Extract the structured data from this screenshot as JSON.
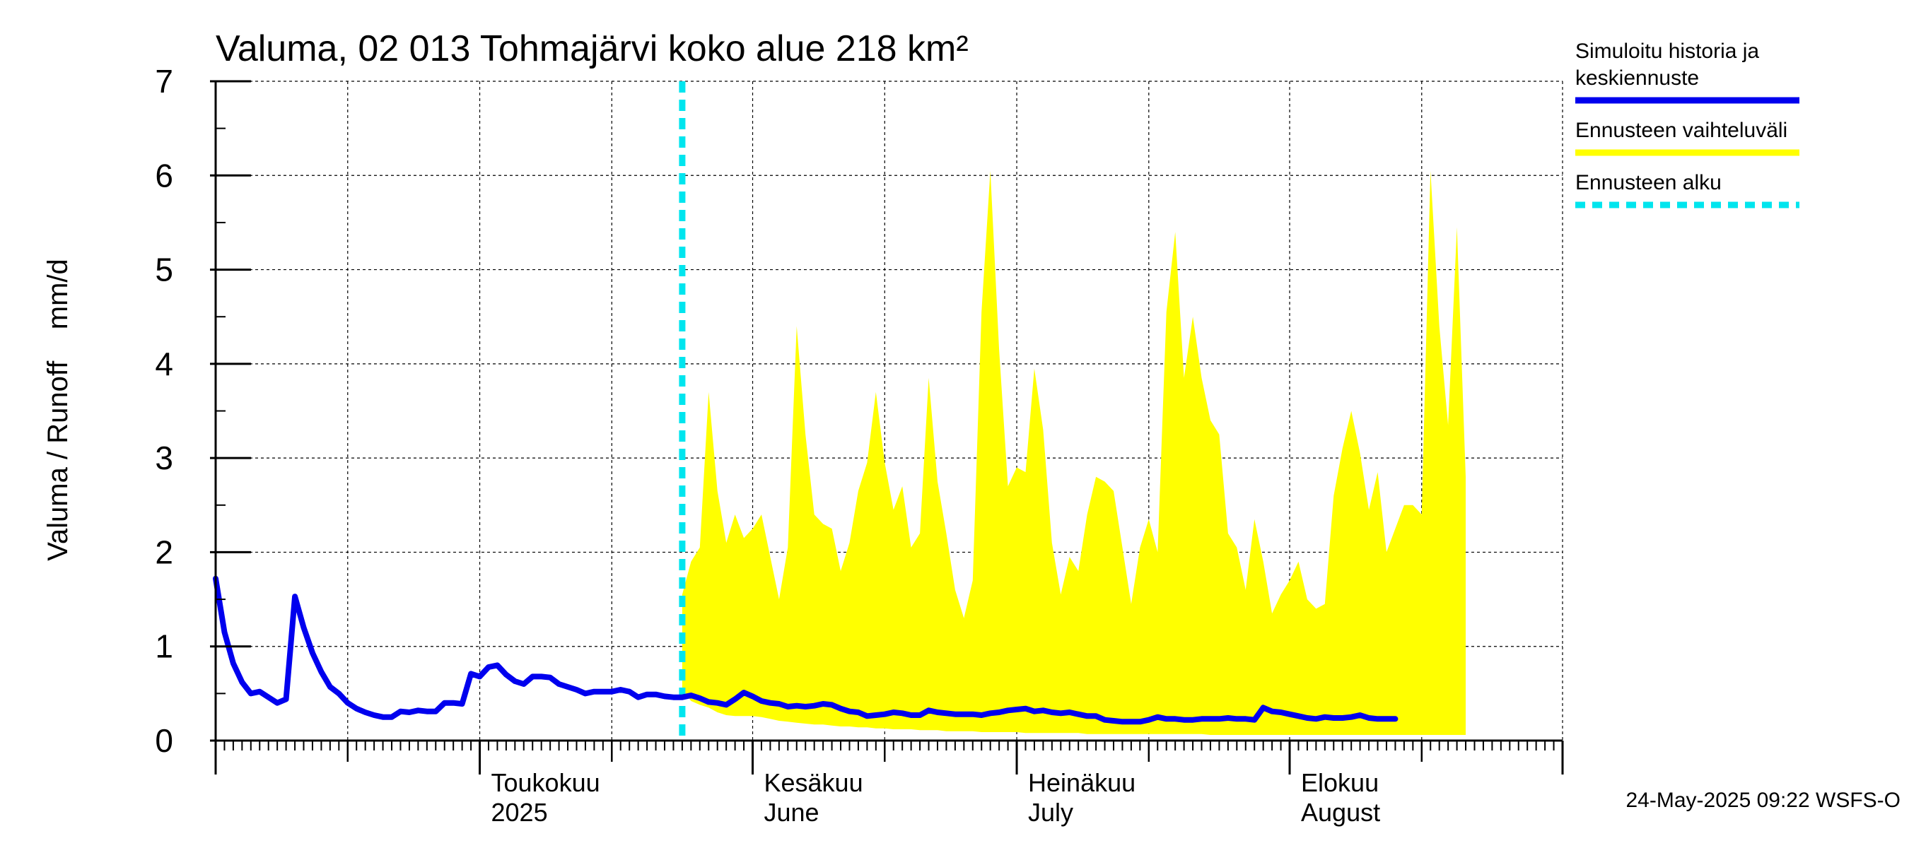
{
  "chart_data": {
    "type": "area",
    "title": "Valuma, 02 013 Tohmajärvi koko alue 218 km²",
    "ylabel": "Valuma / Runoff    mm/d",
    "ylim": [
      0,
      7
    ],
    "yticks": [
      "0",
      "1",
      "2",
      "3",
      "4",
      "5",
      "6",
      "7"
    ],
    "grid": true,
    "legend_position": "right",
    "start_date": "2025-04-01",
    "end_date": "2025-08-31",
    "forecast_start": "2025-05-24",
    "month_labels": [
      {
        "date": "2025-05-01",
        "line1": "Toukokuu",
        "line2": "2025"
      },
      {
        "date": "2025-06-01",
        "line1": "Kesäkuu",
        "line2": "June"
      },
      {
        "date": "2025-07-01",
        "line1": "Heinäkuu",
        "line2": "July"
      },
      {
        "date": "2025-08-01",
        "line1": "Elokuu",
        "line2": "August"
      }
    ],
    "series": [
      {
        "name": "Simuloitu historia ja keskiennuste",
        "color": "#0000ee",
        "points": [
          [
            "2025-04-01",
            1.72
          ],
          [
            "2025-04-02",
            1.15
          ],
          [
            "2025-04-03",
            0.82
          ],
          [
            "2025-04-04",
            0.62
          ],
          [
            "2025-04-05",
            0.5
          ],
          [
            "2025-04-06",
            0.52
          ],
          [
            "2025-04-07",
            0.46
          ],
          [
            "2025-04-08",
            0.4
          ],
          [
            "2025-04-09",
            0.44
          ],
          [
            "2025-04-10",
            1.53
          ],
          [
            "2025-04-11",
            1.2
          ],
          [
            "2025-04-12",
            0.93
          ],
          [
            "2025-04-13",
            0.73
          ],
          [
            "2025-04-14",
            0.57
          ],
          [
            "2025-04-15",
            0.5
          ],
          [
            "2025-04-16",
            0.4
          ],
          [
            "2025-04-17",
            0.34
          ],
          [
            "2025-04-18",
            0.3
          ],
          [
            "2025-04-19",
            0.27
          ],
          [
            "2025-04-20",
            0.25
          ],
          [
            "2025-04-21",
            0.25
          ],
          [
            "2025-04-22",
            0.31
          ],
          [
            "2025-04-23",
            0.3
          ],
          [
            "2025-04-24",
            0.32
          ],
          [
            "2025-04-25",
            0.31
          ],
          [
            "2025-04-26",
            0.31
          ],
          [
            "2025-04-27",
            0.4
          ],
          [
            "2025-04-28",
            0.4
          ],
          [
            "2025-04-29",
            0.39
          ],
          [
            "2025-04-30",
            0.71
          ],
          [
            "2025-05-01",
            0.68
          ],
          [
            "2025-05-02",
            0.78
          ],
          [
            "2025-05-03",
            0.8
          ],
          [
            "2025-05-04",
            0.7
          ],
          [
            "2025-05-05",
            0.63
          ],
          [
            "2025-05-06",
            0.6
          ],
          [
            "2025-05-07",
            0.68
          ],
          [
            "2025-05-08",
            0.68
          ],
          [
            "2025-05-09",
            0.67
          ],
          [
            "2025-05-10",
            0.6
          ],
          [
            "2025-05-11",
            0.57
          ],
          [
            "2025-05-12",
            0.54
          ],
          [
            "2025-05-13",
            0.5
          ],
          [
            "2025-05-14",
            0.52
          ],
          [
            "2025-05-15",
            0.52
          ],
          [
            "2025-05-16",
            0.52
          ],
          [
            "2025-05-17",
            0.54
          ],
          [
            "2025-05-18",
            0.52
          ],
          [
            "2025-05-19",
            0.46
          ],
          [
            "2025-05-20",
            0.49
          ],
          [
            "2025-05-21",
            0.49
          ],
          [
            "2025-05-22",
            0.47
          ],
          [
            "2025-05-23",
            0.46
          ],
          [
            "2025-05-24",
            0.46
          ],
          [
            "2025-05-25",
            0.48
          ],
          [
            "2025-05-26",
            0.45
          ],
          [
            "2025-05-27",
            0.41
          ],
          [
            "2025-05-28",
            0.4
          ],
          [
            "2025-05-29",
            0.38
          ],
          [
            "2025-05-30",
            0.44
          ],
          [
            "2025-05-31",
            0.51
          ],
          [
            "2025-06-01",
            0.47
          ],
          [
            "2025-06-02",
            0.42
          ],
          [
            "2025-06-03",
            0.4
          ],
          [
            "2025-06-04",
            0.39
          ],
          [
            "2025-06-05",
            0.36
          ],
          [
            "2025-06-06",
            0.37
          ],
          [
            "2025-06-07",
            0.36
          ],
          [
            "2025-06-08",
            0.37
          ],
          [
            "2025-06-09",
            0.39
          ],
          [
            "2025-06-10",
            0.38
          ],
          [
            "2025-06-11",
            0.34
          ],
          [
            "2025-06-12",
            0.31
          ],
          [
            "2025-06-13",
            0.3
          ],
          [
            "2025-06-14",
            0.26
          ],
          [
            "2025-06-15",
            0.27
          ],
          [
            "2025-06-16",
            0.28
          ],
          [
            "2025-06-17",
            0.3
          ],
          [
            "2025-06-18",
            0.29
          ],
          [
            "2025-06-19",
            0.27
          ],
          [
            "2025-06-20",
            0.27
          ],
          [
            "2025-06-21",
            0.32
          ],
          [
            "2025-06-22",
            0.3
          ],
          [
            "2025-06-23",
            0.29
          ],
          [
            "2025-06-24",
            0.28
          ],
          [
            "2025-06-25",
            0.28
          ],
          [
            "2025-06-26",
            0.28
          ],
          [
            "2025-06-27",
            0.27
          ],
          [
            "2025-06-28",
            0.29
          ],
          [
            "2025-06-29",
            0.3
          ],
          [
            "2025-06-30",
            0.32
          ],
          [
            "2025-07-01",
            0.33
          ],
          [
            "2025-07-02",
            0.34
          ],
          [
            "2025-07-03",
            0.31
          ],
          [
            "2025-07-04",
            0.32
          ],
          [
            "2025-07-05",
            0.3
          ],
          [
            "2025-07-06",
            0.29
          ],
          [
            "2025-07-07",
            0.3
          ],
          [
            "2025-07-08",
            0.28
          ],
          [
            "2025-07-09",
            0.26
          ],
          [
            "2025-07-10",
            0.26
          ],
          [
            "2025-07-11",
            0.22
          ],
          [
            "2025-07-12",
            0.21
          ],
          [
            "2025-07-13",
            0.2
          ],
          [
            "2025-07-14",
            0.2
          ],
          [
            "2025-07-15",
            0.2
          ],
          [
            "2025-07-16",
            0.22
          ],
          [
            "2025-07-17",
            0.25
          ],
          [
            "2025-07-18",
            0.23
          ],
          [
            "2025-07-19",
            0.23
          ],
          [
            "2025-07-20",
            0.22
          ],
          [
            "2025-07-21",
            0.22
          ],
          [
            "2025-07-22",
            0.23
          ],
          [
            "2025-07-23",
            0.23
          ],
          [
            "2025-07-24",
            0.23
          ],
          [
            "2025-07-25",
            0.24
          ],
          [
            "2025-07-26",
            0.23
          ],
          [
            "2025-07-27",
            0.23
          ],
          [
            "2025-07-28",
            0.22
          ],
          [
            "2025-07-29",
            0.35
          ],
          [
            "2025-07-30",
            0.31
          ],
          [
            "2025-07-31",
            0.3
          ],
          [
            "2025-08-01",
            0.28
          ],
          [
            "2025-08-02",
            0.26
          ],
          [
            "2025-08-03",
            0.24
          ],
          [
            "2025-08-04",
            0.23
          ],
          [
            "2025-08-05",
            0.25
          ],
          [
            "2025-08-06",
            0.24
          ],
          [
            "2025-08-07",
            0.24
          ],
          [
            "2025-08-08",
            0.25
          ],
          [
            "2025-08-09",
            0.27
          ],
          [
            "2025-08-10",
            0.24
          ],
          [
            "2025-08-11",
            0.23
          ],
          [
            "2025-08-12",
            0.23
          ],
          [
            "2025-08-13",
            0.23
          ]
        ]
      },
      {
        "name": "Ennusteen vaihteluväli",
        "color": "#ffff00",
        "band": [
          [
            "2025-05-24",
            0.55,
            1.55
          ],
          [
            "2025-05-25",
            0.42,
            1.9
          ],
          [
            "2025-05-26",
            0.38,
            2.05
          ],
          [
            "2025-05-27",
            0.35,
            3.7
          ],
          [
            "2025-05-28",
            0.3,
            2.65
          ],
          [
            "2025-05-29",
            0.27,
            2.1
          ],
          [
            "2025-05-30",
            0.26,
            2.4
          ],
          [
            "2025-05-31",
            0.26,
            2.15
          ],
          [
            "2025-06-01",
            0.26,
            2.25
          ],
          [
            "2025-06-02",
            0.25,
            2.4
          ],
          [
            "2025-06-03",
            0.23,
            1.95
          ],
          [
            "2025-06-04",
            0.21,
            1.5
          ],
          [
            "2025-06-05",
            0.2,
            2.05
          ],
          [
            "2025-06-06",
            0.19,
            4.4
          ],
          [
            "2025-06-07",
            0.18,
            3.25
          ],
          [
            "2025-06-08",
            0.17,
            2.4
          ],
          [
            "2025-06-09",
            0.17,
            2.3
          ],
          [
            "2025-06-10",
            0.16,
            2.25
          ],
          [
            "2025-06-11",
            0.15,
            1.8
          ],
          [
            "2025-06-12",
            0.15,
            2.1
          ],
          [
            "2025-06-13",
            0.14,
            2.65
          ],
          [
            "2025-06-14",
            0.14,
            2.95
          ],
          [
            "2025-06-15",
            0.13,
            3.7
          ],
          [
            "2025-06-16",
            0.13,
            2.95
          ],
          [
            "2025-06-17",
            0.12,
            2.45
          ],
          [
            "2025-06-18",
            0.12,
            2.7
          ],
          [
            "2025-06-19",
            0.12,
            2.05
          ],
          [
            "2025-06-20",
            0.11,
            2.2
          ],
          [
            "2025-06-21",
            0.11,
            3.85
          ],
          [
            "2025-06-22",
            0.11,
            2.75
          ],
          [
            "2025-06-23",
            0.1,
            2.2
          ],
          [
            "2025-06-24",
            0.1,
            1.6
          ],
          [
            "2025-06-25",
            0.1,
            1.3
          ],
          [
            "2025-06-26",
            0.1,
            1.7
          ],
          [
            "2025-06-27",
            0.09,
            4.55
          ],
          [
            "2025-06-28",
            0.09,
            6.05
          ],
          [
            "2025-06-29",
            0.09,
            4.15
          ],
          [
            "2025-06-30",
            0.09,
            2.7
          ],
          [
            "2025-07-01",
            0.09,
            2.9
          ],
          [
            "2025-07-02",
            0.08,
            2.85
          ],
          [
            "2025-07-03",
            0.08,
            3.95
          ],
          [
            "2025-07-04",
            0.08,
            3.3
          ],
          [
            "2025-07-05",
            0.08,
            2.1
          ],
          [
            "2025-07-06",
            0.08,
            1.55
          ],
          [
            "2025-07-07",
            0.08,
            1.95
          ],
          [
            "2025-07-08",
            0.08,
            1.8
          ],
          [
            "2025-07-09",
            0.07,
            2.4
          ],
          [
            "2025-07-10",
            0.07,
            2.8
          ],
          [
            "2025-07-11",
            0.07,
            2.75
          ],
          [
            "2025-07-12",
            0.07,
            2.65
          ],
          [
            "2025-07-13",
            0.07,
            2.05
          ],
          [
            "2025-07-14",
            0.07,
            1.45
          ],
          [
            "2025-07-15",
            0.07,
            2.05
          ],
          [
            "2025-07-16",
            0.07,
            2.35
          ],
          [
            "2025-07-17",
            0.07,
            2.0
          ],
          [
            "2025-07-18",
            0.07,
            4.55
          ],
          [
            "2025-07-19",
            0.07,
            5.4
          ],
          [
            "2025-07-20",
            0.07,
            3.85
          ],
          [
            "2025-07-21",
            0.07,
            4.5
          ],
          [
            "2025-07-22",
            0.07,
            3.85
          ],
          [
            "2025-07-23",
            0.06,
            3.4
          ],
          [
            "2025-07-24",
            0.06,
            3.25
          ],
          [
            "2025-07-25",
            0.06,
            2.2
          ],
          [
            "2025-07-26",
            0.06,
            2.05
          ],
          [
            "2025-07-27",
            0.06,
            1.6
          ],
          [
            "2025-07-28",
            0.06,
            2.35
          ],
          [
            "2025-07-29",
            0.06,
            1.9
          ],
          [
            "2025-07-30",
            0.06,
            1.35
          ],
          [
            "2025-07-31",
            0.06,
            1.55
          ],
          [
            "2025-08-01",
            0.06,
            1.7
          ],
          [
            "2025-08-02",
            0.06,
            1.9
          ],
          [
            "2025-08-03",
            0.06,
            1.5
          ],
          [
            "2025-08-04",
            0.06,
            1.4
          ],
          [
            "2025-08-05",
            0.06,
            1.45
          ],
          [
            "2025-08-06",
            0.06,
            2.6
          ],
          [
            "2025-08-07",
            0.06,
            3.1
          ],
          [
            "2025-08-08",
            0.06,
            3.5
          ],
          [
            "2025-08-09",
            0.06,
            3.05
          ],
          [
            "2025-08-10",
            0.06,
            2.45
          ],
          [
            "2025-08-11",
            0.06,
            2.85
          ],
          [
            "2025-08-12",
            0.06,
            2.0
          ],
          [
            "2025-08-13",
            0.06,
            2.25
          ],
          [
            "2025-08-14",
            0.06,
            2.5
          ],
          [
            "2025-08-15",
            0.06,
            2.5
          ],
          [
            "2025-08-16",
            0.06,
            2.4
          ],
          [
            "2025-08-17",
            0.06,
            6.05
          ],
          [
            "2025-08-18",
            0.06,
            4.4
          ],
          [
            "2025-08-19",
            0.06,
            3.35
          ],
          [
            "2025-08-20",
            0.06,
            5.45
          ],
          [
            "2025-08-21",
            0.06,
            2.8
          ]
        ]
      },
      {
        "name": "Ennusteen alku",
        "color": "#00e5ee"
      }
    ],
    "legend": [
      {
        "line1": "Simuloitu historia ja",
        "line2": "keskiennuste",
        "color": "#0000ee",
        "style": "solid"
      },
      {
        "line1": "Ennusteen vaihteluväli",
        "line2": "",
        "color": "#ffff00",
        "style": "solid"
      },
      {
        "line1": "Ennusteen alku",
        "line2": "",
        "color": "#00e5ee",
        "style": "dashed"
      }
    ],
    "footer": "24-May-2025 09:22 WSFS-O"
  }
}
